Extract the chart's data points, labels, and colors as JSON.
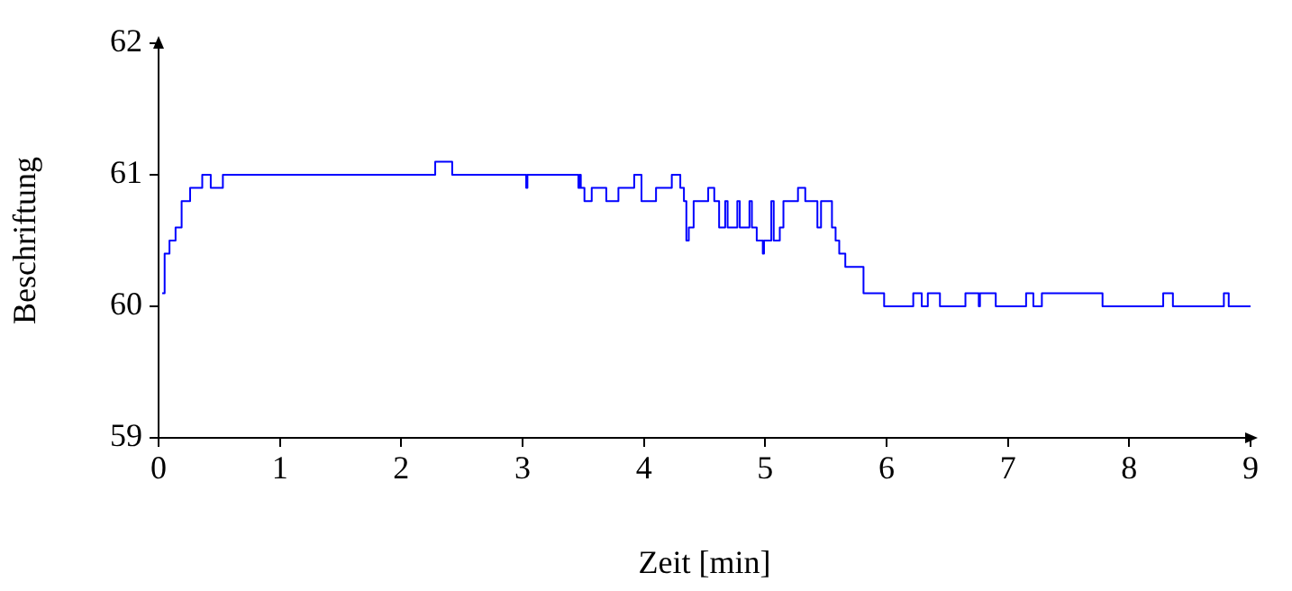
{
  "chart_data": {
    "type": "step",
    "xlabel": "Zeit [min]",
    "ylabel": "Beschriftung",
    "xlim": [
      0,
      9
    ],
    "xticks": [
      0,
      1,
      2,
      3,
      4,
      5,
      6,
      7,
      8,
      9
    ],
    "ylim": [
      59,
      62
    ],
    "yticks": [
      59,
      60,
      61,
      62
    ],
    "grid": false,
    "legend": false,
    "marker": "none",
    "line_style": "solid",
    "series": [
      {
        "color": "#0000ff",
        "x": [
          0.03,
          0.05,
          0.09,
          0.14,
          0.19,
          0.26,
          0.36,
          0.43,
          0.53,
          2.28,
          2.42,
          3.03,
          3.04,
          3.46,
          3.47,
          3.48,
          3.51,
          3.57,
          3.69,
          3.79,
          3.92,
          3.98,
          4.1,
          4.23,
          4.3,
          4.33,
          4.35,
          4.37,
          4.41,
          4.53,
          4.58,
          4.62,
          4.67,
          4.69,
          4.77,
          4.79,
          4.87,
          4.89,
          4.93,
          4.98,
          4.99,
          5.05,
          5.07,
          5.12,
          5.15,
          5.27,
          5.33,
          5.43,
          5.46,
          5.55,
          5.58,
          5.61,
          5.66,
          5.81,
          5.98,
          6.22,
          6.29,
          6.34,
          6.44,
          6.65,
          6.76,
          6.77,
          6.9,
          7.15,
          7.21,
          7.28,
          7.78,
          8.28,
          8.36,
          8.78,
          8.82,
          9
        ],
        "values": [
          60.1,
          60.4,
          60.5,
          60.6,
          60.8,
          60.9,
          61,
          60.9,
          61,
          61.1,
          61,
          60.9,
          61,
          60.9,
          61,
          60.9,
          60.8,
          60.9,
          60.8,
          60.9,
          61,
          60.8,
          60.9,
          61,
          60.9,
          60.8,
          60.5,
          60.6,
          60.8,
          60.9,
          60.8,
          60.6,
          60.8,
          60.6,
          60.8,
          60.6,
          60.8,
          60.6,
          60.5,
          60.4,
          60.5,
          60.8,
          60.5,
          60.6,
          60.8,
          60.9,
          60.8,
          60.6,
          60.8,
          60.6,
          60.5,
          60.4,
          60.3,
          60.1,
          60,
          60.1,
          60,
          60.1,
          60,
          60.1,
          60,
          60.1,
          60,
          60.1,
          60,
          60.1,
          60,
          60.1,
          60,
          60.1,
          60,
          60
        ]
      }
    ]
  }
}
